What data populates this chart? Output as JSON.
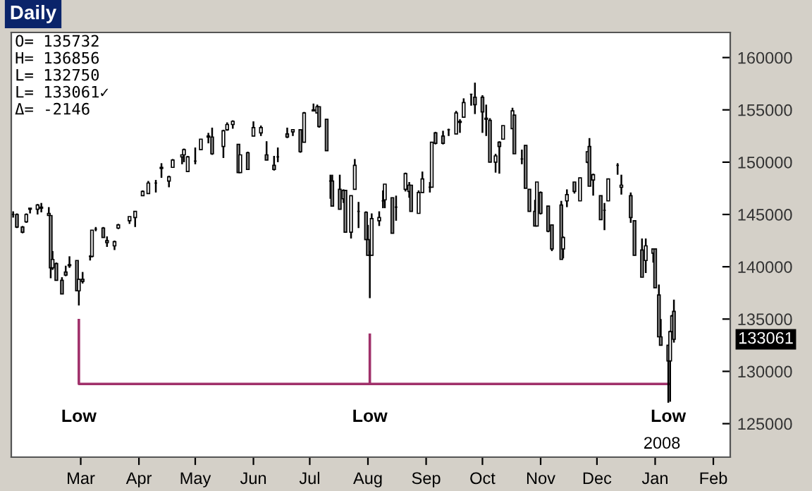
{
  "chart_data": {
    "type": "candlestick",
    "title": "Daily",
    "x": [
      "2007-02-07",
      "2007-02-09",
      "2007-02-12",
      "2007-02-14",
      "2007-02-16",
      "2007-02-20",
      "2007-02-22",
      "2007-02-26",
      "2007-02-27",
      "2007-02-28",
      "2007-03-02",
      "2007-03-05",
      "2007-03-07",
      "2007-03-09",
      "2007-03-13",
      "2007-03-14",
      "2007-03-16",
      "2007-03-20",
      "2007-03-21",
      "2007-03-23",
      "2007-03-27",
      "2007-03-29",
      "2007-04-02",
      "2007-04-04",
      "2007-04-10",
      "2007-04-13",
      "2007-04-17",
      "2007-04-20",
      "2007-04-24",
      "2007-04-27",
      "2007-05-01",
      "2007-05-03",
      "2007-05-08",
      "2007-05-09",
      "2007-05-11",
      "2007-05-15",
      "2007-05-18",
      "2007-05-22",
      "2007-05-24",
      "2007-05-30",
      "2007-06-01",
      "2007-06-04",
      "2007-06-07",
      "2007-06-08",
      "2007-06-12",
      "2007-06-15",
      "2007-06-19",
      "2007-06-22",
      "2007-06-26",
      "2007-06-28",
      "2007-07-03",
      "2007-07-06",
      "2007-07-10",
      "2007-07-12",
      "2007-07-17",
      "2007-07-19",
      "2007-07-20",
      "2007-07-24",
      "2007-07-26",
      "2007-07-27",
      "2007-07-31",
      "2007-08-02",
      "2007-08-03",
      "2007-08-06",
      "2007-08-08",
      "2007-08-10",
      "2007-08-14",
      "2007-08-15",
      "2007-08-16",
      "2007-08-17",
      "2007-08-21",
      "2007-08-23",
      "2007-08-24",
      "2007-08-28",
      "2007-08-30",
      "2007-09-04",
      "2007-09-06",
      "2007-09-07",
      "2007-09-11",
      "2007-09-13",
      "2007-09-17",
      "2007-09-18",
      "2007-09-20",
      "2007-09-24",
      "2007-09-27",
      "2007-10-01",
      "2007-10-03",
      "2007-10-05",
      "2007-10-09",
      "2007-10-11",
      "2007-10-15",
      "2007-10-17",
      "2007-10-19",
      "2007-10-22",
      "2007-10-24",
      "2007-10-26",
      "2007-10-31",
      "2007-11-01",
      "2007-11-05",
      "2007-11-07",
      "2007-11-09",
      "2007-11-12",
      "2007-11-13",
      "2007-11-15",
      "2007-11-19",
      "2007-11-21",
      "2007-11-26",
      "2007-11-27",
      "2007-11-29",
      "2007-12-03",
      "2007-12-06",
      "2007-12-10",
      "2007-12-11",
      "2007-12-13",
      "2007-12-17",
      "2007-12-19",
      "2007-12-21",
      "2007-12-26",
      "2007-12-28",
      "2008-01-02",
      "2008-01-04",
      "2008-01-08",
      "2008-01-10",
      "2008-01-14",
      "2008-01-15",
      "2008-01-17",
      "2008-01-18",
      "2008-01-22",
      "2008-01-23",
      "2008-01-24",
      "2008-01-25"
    ],
    "ohlc": [
      [
        145000,
        145300,
        144700,
        145000
      ],
      [
        145000,
        145100,
        143700,
        143800
      ],
      [
        143800,
        143900,
        143200,
        143300
      ],
      [
        144300,
        145100,
        144200,
        145000
      ],
      [
        145600,
        145600,
        145100,
        145500
      ],
      [
        145500,
        146000,
        145000,
        145900
      ],
      [
        145700,
        146100,
        145200,
        145600
      ],
      [
        145100,
        145700,
        144900,
        144900
      ],
      [
        144900,
        144900,
        138900,
        139900
      ],
      [
        139900,
        141500,
        139700,
        140700
      ],
      [
        140300,
        140400,
        138700,
        138700
      ],
      [
        138700,
        139000,
        137400,
        137400
      ],
      [
        139500,
        140100,
        139100,
        139200
      ],
      [
        140100,
        141000,
        139900,
        140200
      ],
      [
        140600,
        140600,
        137700,
        137700
      ],
      [
        137700,
        138800,
        136300,
        138800
      ],
      [
        138800,
        139500,
        138400,
        138600
      ],
      [
        141000,
        141100,
        140600,
        141000
      ],
      [
        141000,
        143500,
        140900,
        143500
      ],
      [
        143600,
        143800,
        143400,
        143600
      ],
      [
        143700,
        143800,
        142800,
        142800
      ],
      [
        142500,
        142900,
        141900,
        142300
      ],
      [
        142000,
        142500,
        141600,
        142400
      ],
      [
        143700,
        144100,
        143600,
        144000
      ],
      [
        144400,
        144800,
        144100,
        144800
      ],
      [
        144700,
        145300,
        143800,
        145300
      ],
      [
        146800,
        147300,
        146800,
        147200
      ],
      [
        147000,
        148200,
        147000,
        148000
      ],
      [
        148000,
        148300,
        147100,
        148000
      ],
      [
        149500,
        149900,
        148500,
        149400
      ],
      [
        148200,
        148700,
        147600,
        148600
      ],
      [
        149500,
        150300,
        149500,
        150200
      ],
      [
        150500,
        150700,
        149800,
        150700
      ],
      [
        150700,
        151300,
        150000,
        151200
      ],
      [
        149100,
        150600,
        149100,
        150500
      ],
      [
        150100,
        151400,
        149800,
        150100
      ],
      [
        151200,
        152200,
        151200,
        152200
      ],
      [
        152500,
        152800,
        151800,
        152400
      ],
      [
        152400,
        153300,
        150700,
        150800
      ],
      [
        151500,
        153100,
        150400,
        153000
      ],
      [
        153100,
        153800,
        153000,
        153600
      ],
      [
        153600,
        154000,
        153200,
        153900
      ],
      [
        151700,
        151700,
        149000,
        149000
      ],
      [
        149000,
        150700,
        149000,
        150700
      ],
      [
        150900,
        151000,
        149300,
        149300
      ],
      [
        152500,
        153900,
        152500,
        153300
      ],
      [
        152800,
        153500,
        152500,
        153300
      ],
      [
        150700,
        152000,
        150200,
        150200
      ],
      [
        149700,
        150600,
        149200,
        149300
      ],
      [
        150500,
        151400,
        150000,
        150500
      ],
      [
        152700,
        153300,
        152300,
        152400
      ],
      [
        152900,
        153100,
        152500,
        153100
      ],
      [
        153100,
        153100,
        150900,
        151000
      ],
      [
        151900,
        154800,
        151900,
        154700
      ],
      [
        155000,
        155600,
        154900,
        154900
      ],
      [
        154700,
        155500,
        154700,
        155300
      ],
      [
        155300,
        155300,
        153300,
        153400
      ],
      [
        154100,
        154100,
        151100,
        151100
      ],
      [
        148200,
        148800,
        146500,
        148200
      ],
      [
        148200,
        148800,
        145800,
        145800
      ],
      [
        147400,
        148800,
        145500,
        145500
      ],
      [
        146500,
        147400,
        146100,
        147300
      ],
      [
        147300,
        147300,
        143300,
        143300
      ],
      [
        143300,
        146800,
        142700,
        146800
      ],
      [
        147400,
        150300,
        147400,
        149700
      ],
      [
        145300,
        146200,
        143700,
        145300
      ],
      [
        145200,
        145300,
        142600,
        142600
      ],
      [
        142600,
        144000,
        141100,
        141100
      ],
      [
        141100,
        141500,
        137000,
        141100
      ],
      [
        141100,
        145100,
        141100,
        144600
      ],
      [
        144400,
        145300,
        143900,
        144700
      ],
      [
        146300,
        147300,
        145600,
        146300
      ],
      [
        146400,
        147900,
        145600,
        147900
      ],
      [
        146600,
        146600,
        143200,
        143200
      ],
      [
        145700,
        146800,
        144400,
        145700
      ],
      [
        147400,
        149000,
        147200,
        148900
      ],
      [
        147200,
        148100,
        146600,
        147800
      ],
      [
        147800,
        147800,
        145300,
        145300
      ],
      [
        145100,
        147300,
        145100,
        147100
      ],
      [
        147100,
        149100,
        147100,
        148400
      ],
      [
        147600,
        148100,
        147100,
        147600
      ],
      [
        147600,
        151900,
        147600,
        151900
      ],
      [
        152800,
        152900,
        151700,
        151800
      ],
      [
        152500,
        153000,
        151700,
        151800
      ],
      [
        153100,
        153200,
        152500,
        153100
      ],
      [
        152700,
        154900,
        152700,
        154700
      ],
      [
        153800,
        154100,
        152800,
        153900
      ],
      [
        154300,
        156100,
        154300,
        155700
      ],
      [
        156500,
        156500,
        155400,
        156500
      ],
      [
        156200,
        157600,
        154600,
        155500
      ],
      [
        156200,
        156400,
        152800,
        154800
      ],
      [
        154200,
        155500,
        152500,
        154100
      ],
      [
        154000,
        154200,
        150000,
        150000
      ],
      [
        150000,
        150800,
        149000,
        150600
      ],
      [
        151900,
        152000,
        148900,
        151500
      ],
      [
        152200,
        153500,
        152200,
        153500
      ],
      [
        153200,
        155200,
        153200,
        154900
      ],
      [
        154500,
        154500,
        150800,
        150800
      ],
      [
        150300,
        151200,
        149800,
        150300
      ],
      [
        151600,
        151600,
        147500,
        147500
      ],
      [
        147400,
        147400,
        145300,
        145300
      ],
      [
        145300,
        146400,
        143900,
        143900
      ],
      [
        143900,
        148100,
        143900,
        148100
      ],
      [
        147100,
        147200,
        145000,
        145100
      ],
      [
        145800,
        145800,
        143300,
        143400
      ],
      [
        144000,
        144000,
        141500,
        141700
      ],
      [
        145900,
        146300,
        140700,
        140700
      ],
      [
        141700,
        142900,
        140800,
        142800
      ],
      [
        146300,
        147400,
        145700,
        146900
      ],
      [
        148100,
        148100,
        147000,
        147200
      ],
      [
        146300,
        148500,
        146300,
        148500
      ],
      [
        150000,
        151000,
        149900,
        151000
      ],
      [
        151500,
        152300,
        147700,
        147700
      ],
      [
        148300,
        148900,
        146800,
        148800
      ],
      [
        146800,
        146800,
        144500,
        144500
      ],
      [
        145400,
        146100,
        143500,
        145400
      ],
      [
        146300,
        148400,
        146300,
        148400
      ],
      [
        149700,
        149900,
        148800,
        149700
      ],
      [
        147600,
        148800,
        146900,
        147800
      ],
      [
        146800,
        147100,
        144200,
        144700
      ],
      [
        144400,
        144400,
        141100,
        141100
      ],
      [
        141600,
        142700,
        139000,
        139000
      ],
      [
        140600,
        142700,
        139400,
        142000
      ],
      [
        141300,
        141700,
        140400,
        141700
      ],
      [
        141700,
        141700,
        138000,
        138000
      ],
      [
        137300,
        138300,
        133300,
        133300
      ],
      [
        133300,
        135000,
        132500,
        132500
      ],
      [
        132500,
        132500,
        127000,
        131000
      ],
      [
        131000,
        133900,
        127100,
        133800
      ],
      [
        133800,
        135400,
        133800,
        135300
      ],
      [
        135732,
        136856,
        132750,
        133061
      ]
    ],
    "color": "#000000",
    "series": [
      {
        "type": "line",
        "color": "#a0306a",
        "x": [
          "2007-03-14",
          "2007-03-14",
          "2008-01-22"
        ],
        "values": [
          134900,
          128800,
          128800
        ]
      },
      {
        "type": "line",
        "color": "#a0306a",
        "x": [
          "2007-08-16",
          "2007-08-16"
        ],
        "values": [
          133500,
          128800
        ]
      }
    ],
    "xlim": [
      "2007-02-06",
      "2008-02-24"
    ],
    "xticks": [
      {
        "value": "2007-03-15",
        "label": "Mar"
      },
      {
        "value": "2007-04-15",
        "label": "Apr"
      },
      {
        "value": "2007-05-15",
        "label": "May"
      },
      {
        "value": "2007-06-15",
        "label": "Jun"
      },
      {
        "value": "2007-07-15",
        "label": "Jul"
      },
      {
        "value": "2007-08-15",
        "label": "Aug"
      },
      {
        "value": "2007-09-15",
        "label": "Sep"
      },
      {
        "value": "2007-10-15",
        "label": "Oct"
      },
      {
        "value": "2007-11-15",
        "label": "Nov"
      },
      {
        "value": "2007-12-15",
        "label": "Dec"
      },
      {
        "value": "2008-01-15",
        "label": "Jan"
      },
      {
        "value": "2008-02-15",
        "label": "Feb"
      }
    ],
    "ylim": [
      121800,
      162400
    ],
    "yticks": [
      125000,
      130000,
      135000,
      140000,
      145000,
      150000,
      155000,
      160000
    ],
    "grid": false,
    "annotations": [
      "O= 135732",
      "H= 136856",
      "L= 132750",
      "L= 133061✓",
      "Δ= -2146",
      "2008",
      "Low",
      "Low",
      "Low",
      "133061"
    ]
  }
}
